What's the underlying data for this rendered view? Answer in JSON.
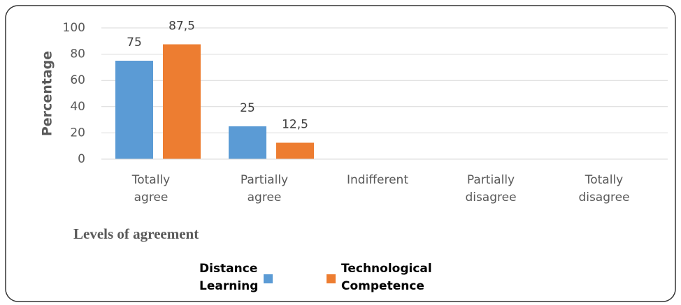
{
  "chart_data": {
    "type": "bar",
    "y_label": "Percentage",
    "x_label": "Levels of agreement",
    "categories": [
      "Totally agree",
      "Partially agree",
      "Indifferent",
      "Partially disagree",
      "Totally disagree"
    ],
    "series": [
      {
        "name": "Distance Learning",
        "color": "#5b9bd5",
        "values": [
          75,
          25,
          null,
          null,
          null
        ],
        "value_labels": [
          "75",
          "25",
          null,
          null,
          null
        ]
      },
      {
        "name": "Technological Competence",
        "color": "#ed7d31",
        "values": [
          87.5,
          12.5,
          null,
          null,
          null
        ],
        "value_labels": [
          "87,5",
          "12,5",
          null,
          null,
          null
        ]
      }
    ],
    "ylim": [
      0,
      100
    ],
    "yticks": [
      0,
      20,
      40,
      60,
      80,
      100
    ],
    "grid": true,
    "legend": "bottom"
  }
}
